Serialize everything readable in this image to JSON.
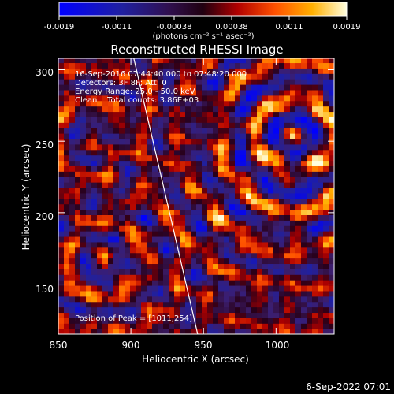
{
  "chart_data": {
    "type": "heatmap",
    "title": "Reconstructed RHESSI Image",
    "xlabel": "Heliocentric X (arcsec)",
    "ylabel": "Heliocentric Y (arcsec)",
    "xlim": [
      850,
      1040
    ],
    "ylim": [
      115,
      308
    ],
    "x_ticks": [
      "850",
      "900",
      "950",
      "1000"
    ],
    "y_ticks": [
      "150",
      "200",
      "250",
      "300"
    ],
    "x_tick_values": [
      850,
      900,
      950,
      1000
    ],
    "y_tick_values": [
      150,
      200,
      250,
      300
    ],
    "colorbar": {
      "ticks": [
        "-0.0019",
        "-0.0011",
        "-0.00038",
        "0.00038",
        "0.0011",
        "0.0019"
      ],
      "units_label": "(photons cm⁻² s⁻¹ asec⁻²)",
      "min": -0.0019,
      "max": 0.0019
    },
    "annotations": [
      "16-Sep-2016 07:44:40.000 to 07:48:20.000",
      "Detectors: 3F 8F; Att: 0",
      "Energy Range: 25.0 - 50.0 keV",
      "Clean    Total counts: 3.86E+03"
    ],
    "peak_label": "Position of Peak = [1011,254]",
    "peak": [
      1011,
      254
    ],
    "limb_line": [
      [
        902,
        308
      ],
      [
        946,
        115
      ]
    ],
    "grid": false,
    "footer_date": "6-Sep-2022 07:01"
  }
}
